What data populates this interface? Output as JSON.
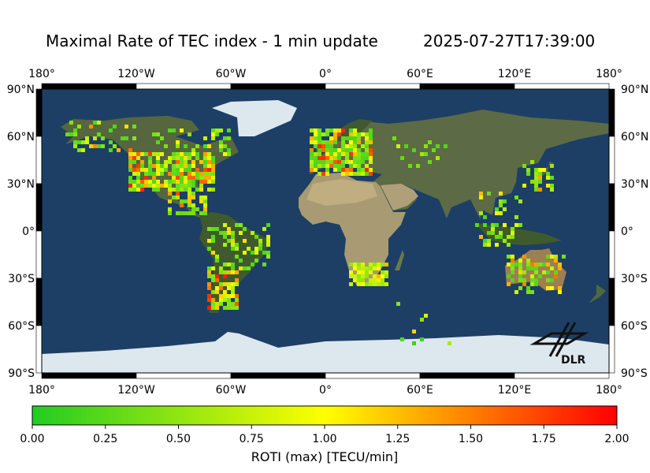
{
  "title": {
    "main": "Maximal Rate of TEC index - 1 min update",
    "timestamp": "2025-07-27T17:39:00"
  },
  "map": {
    "lon_ticks": [
      "180°",
      "120°W",
      "60°W",
      "0°",
      "60°E",
      "120°E",
      "180°"
    ],
    "lat_ticks": [
      "90°N",
      "60°N",
      "30°N",
      "0°",
      "30°S",
      "60°S",
      "90°S"
    ],
    "lon_range": [
      -180,
      180
    ],
    "lat_range": [
      -90,
      90
    ],
    "projection": "plate-carree",
    "base_layer": "blue-marble satellite"
  },
  "logo": {
    "text": "DLR",
    "icon": "dlr-logo-icon"
  },
  "colorbar": {
    "label": "ROTI (max) [TECU/min]",
    "ticks": [
      "0.00",
      "0.25",
      "0.50",
      "0.75",
      "1.00",
      "1.25",
      "1.50",
      "1.75",
      "2.00"
    ],
    "range": [
      0,
      2
    ],
    "colors": [
      "#22cc22",
      "#ffff00",
      "#ff0000"
    ]
  },
  "colors": {
    "ocean": "#1d3f66",
    "land": "#5f6a4a",
    "desert": "#a89a72",
    "ice": "#dce8ee"
  },
  "chart_data": {
    "type": "scatter",
    "title": "Maximal Rate of TEC index - 1 min update",
    "subtitle": "2025-07-27T17:39:00",
    "xlabel": "",
    "ylabel": "",
    "colorbar_label": "ROTI (max) [TECU/min]",
    "xlim": [
      -180,
      180
    ],
    "ylim": [
      -90,
      90
    ],
    "clim": [
      0,
      2
    ],
    "region_clusters": [
      {
        "lon": [
          -125,
          -70
        ],
        "lat": [
          25,
          50
        ],
        "roti_range": [
          0.2,
          1.9
        ],
        "density": 0.75
      },
      {
        "lon": [
          -165,
          -120
        ],
        "lat": [
          50,
          70
        ],
        "roti_range": [
          0.2,
          1.6
        ],
        "density": 0.35
      },
      {
        "lon": [
          -110,
          -60
        ],
        "lat": [
          45,
          65
        ],
        "roti_range": [
          0.2,
          1.2
        ],
        "density": 0.25
      },
      {
        "lon": [
          -10,
          30
        ],
        "lat": [
          35,
          65
        ],
        "roti_range": [
          0.2,
          1.9
        ],
        "density": 0.75
      },
      {
        "lon": [
          15,
          40
        ],
        "lat": [
          -35,
          -22
        ],
        "roti_range": [
          0.5,
          1.3
        ],
        "density": 0.85
      },
      {
        "lon": [
          115,
          152
        ],
        "lat": [
          -40,
          -15
        ],
        "roti_range": [
          0.2,
          1.6
        ],
        "density": 0.45
      },
      {
        "lon": [
          -75,
          -55
        ],
        "lat": [
          -50,
          -25
        ],
        "roti_range": [
          0.4,
          1.9
        ],
        "density": 0.6
      },
      {
        "lon": [
          -75,
          -35
        ],
        "lat": [
          -25,
          5
        ],
        "roti_range": [
          0.2,
          1.2
        ],
        "density": 0.3
      },
      {
        "lon": [
          -100,
          -75
        ],
        "lat": [
          10,
          25
        ],
        "roti_range": [
          0.3,
          1.7
        ],
        "density": 0.35
      },
      {
        "lon": [
          95,
          125
        ],
        "lat": [
          -10,
          25
        ],
        "roti_range": [
          0.2,
          1.3
        ],
        "density": 0.3
      },
      {
        "lon": [
          125,
          145
        ],
        "lat": [
          25,
          45
        ],
        "roti_range": [
          0.3,
          1.8
        ],
        "density": 0.35
      },
      {
        "lon": [
          40,
          80
        ],
        "lat": [
          40,
          60
        ],
        "roti_range": [
          0.2,
          0.8
        ],
        "density": 0.12
      },
      {
        "lon": [
          45,
          80
        ],
        "lat": [
          -75,
          -45
        ],
        "roti_range": [
          0.1,
          1.2
        ],
        "density": 0.08
      }
    ]
  }
}
